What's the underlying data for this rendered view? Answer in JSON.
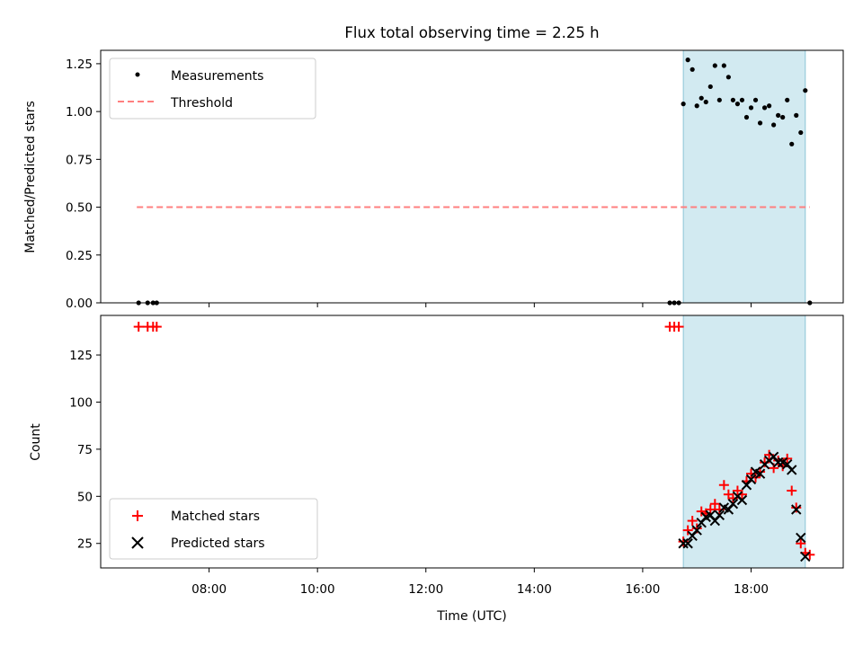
{
  "chart_data": [
    {
      "type": "scatter",
      "title": "Flux total observing time = 2.25 h",
      "xlabel": "",
      "ylabel": "Matched/Predicted stars",
      "ylim": [
        0,
        1.32
      ],
      "yticks": [
        "0.00",
        "0.25",
        "0.50",
        "0.75",
        "1.00",
        "1.25"
      ],
      "xlim_hours": [
        6.0,
        19.7
      ],
      "xticks": [
        "08:00",
        "10:00",
        "12:00",
        "14:00",
        "16:00",
        "18:00"
      ],
      "shaded_interval": [
        "16:45",
        "19:00"
      ],
      "legend": {
        "position": "upper-left",
        "entries": [
          "Measurements",
          "Threshold"
        ]
      },
      "threshold": {
        "name": "Threshold",
        "value": 0.5,
        "x_range": [
          "06:40",
          "19:05"
        ],
        "color": "#ff7f7f",
        "style": "dashed"
      },
      "series": [
        {
          "name": "Measurements",
          "marker": "dot",
          "color": "#000000",
          "points": [
            [
              "06:42",
              0.0
            ],
            [
              "06:52",
              0.0
            ],
            [
              "06:58",
              0.0
            ],
            [
              "07:02",
              0.0
            ],
            [
              "16:30",
              0.0
            ],
            [
              "16:35",
              0.0
            ],
            [
              "16:40",
              0.0
            ],
            [
              "16:45",
              1.04
            ],
            [
              "16:50",
              1.27
            ],
            [
              "16:55",
              1.22
            ],
            [
              "17:00",
              1.03
            ],
            [
              "17:05",
              1.07
            ],
            [
              "17:10",
              1.05
            ],
            [
              "17:15",
              1.13
            ],
            [
              "17:20",
              1.24
            ],
            [
              "17:25",
              1.06
            ],
            [
              "17:30",
              1.24
            ],
            [
              "17:35",
              1.18
            ],
            [
              "17:40",
              1.06
            ],
            [
              "17:45",
              1.04
            ],
            [
              "17:50",
              1.06
            ],
            [
              "17:55",
              0.97
            ],
            [
              "18:00",
              1.02
            ],
            [
              "18:05",
              1.06
            ],
            [
              "18:10",
              0.94
            ],
            [
              "18:15",
              1.02
            ],
            [
              "18:20",
              1.03
            ],
            [
              "18:25",
              0.93
            ],
            [
              "18:30",
              0.98
            ],
            [
              "18:35",
              0.97
            ],
            [
              "18:40",
              1.06
            ],
            [
              "18:45",
              0.83
            ],
            [
              "18:50",
              0.98
            ],
            [
              "18:55",
              0.89
            ],
            [
              "19:00",
              1.11
            ],
            [
              "19:05",
              0.0
            ]
          ]
        }
      ]
    },
    {
      "type": "scatter",
      "title": "",
      "xlabel": "Time (UTC)",
      "ylabel": "Count",
      "ylim": [
        12,
        146
      ],
      "yticks": [
        "25",
        "50",
        "75",
        "100",
        "125"
      ],
      "xlim_hours": [
        6.0,
        19.7
      ],
      "xticks": [
        "08:00",
        "10:00",
        "12:00",
        "14:00",
        "16:00",
        "18:00"
      ],
      "shaded_interval": [
        "16:45",
        "19:00"
      ],
      "legend": {
        "position": "lower-left",
        "entries": [
          "Matched stars",
          "Predicted stars"
        ]
      },
      "series": [
        {
          "name": "Matched stars",
          "marker": "plus",
          "color": "#ff0000",
          "points": [
            [
              "06:42",
              140
            ],
            [
              "06:52",
              140
            ],
            [
              "06:58",
              140
            ],
            [
              "07:02",
              140
            ],
            [
              "16:30",
              140
            ],
            [
              "16:35",
              140
            ],
            [
              "16:40",
              140
            ],
            [
              "16:45",
              26
            ],
            [
              "16:50",
              32
            ],
            [
              "16:55",
              37
            ],
            [
              "17:00",
              33
            ],
            [
              "17:05",
              42
            ],
            [
              "17:10",
              41
            ],
            [
              "17:15",
              43
            ],
            [
              "17:20",
              46
            ],
            [
              "17:25",
              43
            ],
            [
              "17:30",
              56
            ],
            [
              "17:35",
              51
            ],
            [
              "17:40",
              49
            ],
            [
              "17:45",
              53
            ],
            [
              "17:50",
              51
            ],
            [
              "17:55",
              58
            ],
            [
              "18:00",
              62
            ],
            [
              "18:05",
              60
            ],
            [
              "18:10",
              63
            ],
            [
              "18:15",
              68
            ],
            [
              "18:20",
              72
            ],
            [
              "18:25",
              65
            ],
            [
              "18:30",
              69
            ],
            [
              "18:35",
              66
            ],
            [
              "18:40",
              70
            ],
            [
              "18:45",
              53
            ],
            [
              "18:50",
              44
            ],
            [
              "18:55",
              25
            ],
            [
              "19:00",
              20
            ],
            [
              "19:05",
              19
            ]
          ]
        },
        {
          "name": "Predicted stars",
          "marker": "x",
          "color": "#000000",
          "points": [
            [
              "16:45",
              25
            ],
            [
              "16:50",
              25
            ],
            [
              "16:55",
              29
            ],
            [
              "17:00",
              32
            ],
            [
              "17:05",
              36
            ],
            [
              "17:10",
              39
            ],
            [
              "17:15",
              40
            ],
            [
              "17:20",
              37
            ],
            [
              "17:25",
              40
            ],
            [
              "17:30",
              44
            ],
            [
              "17:35",
              43
            ],
            [
              "17:40",
              46
            ],
            [
              "17:45",
              50
            ],
            [
              "17:50",
              48
            ],
            [
              "17:55",
              56
            ],
            [
              "18:00",
              59
            ],
            [
              "18:05",
              63
            ],
            [
              "18:10",
              62
            ],
            [
              "18:15",
              67
            ],
            [
              "18:20",
              69
            ],
            [
              "18:25",
              71
            ],
            [
              "18:30",
              68
            ],
            [
              "18:35",
              68
            ],
            [
              "18:40",
              67
            ],
            [
              "18:45",
              64
            ],
            [
              "18:50",
              43
            ],
            [
              "18:55",
              28
            ],
            [
              "19:00",
              18
            ]
          ]
        }
      ]
    }
  ],
  "colors": {
    "shade_fill": "#add8e6",
    "shade_edge": "#8cc4d6",
    "legend_border": "#cccccc"
  }
}
